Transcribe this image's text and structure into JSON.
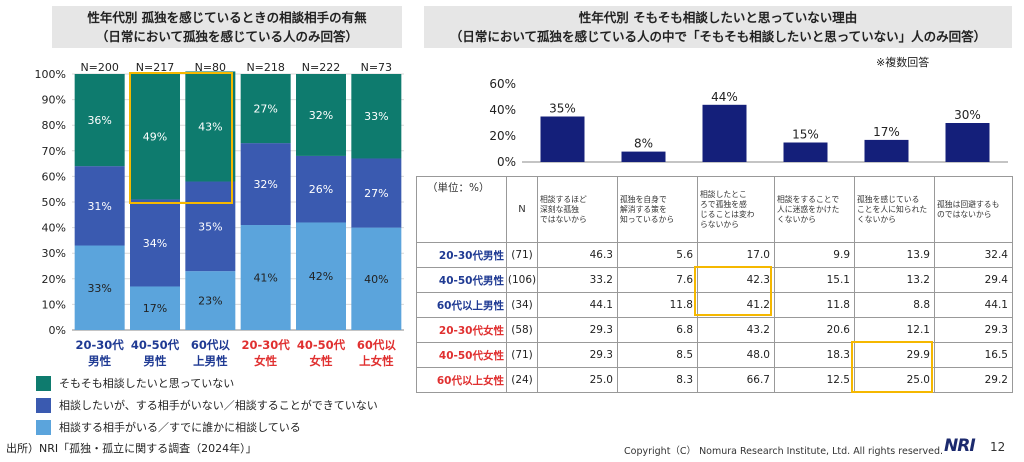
{
  "left": {
    "title_line1": "性年代別 孤独を感じているときの相談相手の有無",
    "title_line2": "（日常において孤独を感じている人のみ回答）"
  },
  "right": {
    "title_line1": "性年代別 そもそも相談したいと思っていない理由",
    "title_line2": "（日常において孤独を感じている人の中で「そもそも相談したいと思っていない」人のみ回答）",
    "note": "※複数回答"
  },
  "source": "出所）NRI「孤独・孤立に関する調査（2024年）」",
  "copyright": "Copyright（C） Nomura Research Institute, Ltd. All rights reserved.",
  "logo": "NRI",
  "page_number": "12",
  "colors": {
    "teal": "#0e7b6e",
    "mid_blue": "#3a5ab0",
    "light_blue": "#5ba4dc",
    "navy": "#141f7a",
    "male": "#1f3a93",
    "female": "#e03030",
    "highlight": "#f5b800"
  },
  "chart_data": [
    {
      "type": "bar",
      "stacked": true,
      "categories": [
        {
          "line1": "20-30代",
          "line2": "男性",
          "group": "male"
        },
        {
          "line1": "40-50代",
          "line2": "男性",
          "group": "male"
        },
        {
          "line1": "60代以",
          "line2": "上男性",
          "group": "male"
        },
        {
          "line1": "20-30代",
          "line2": "女性",
          "group": "female"
        },
        {
          "line1": "40-50代",
          "line2": "女性",
          "group": "female"
        },
        {
          "line1": "60代以",
          "line2": "上女性",
          "group": "female"
        }
      ],
      "n_labels": [
        "N=200",
        "N=217",
        "N=80",
        "N=218",
        "N=222",
        "N=73"
      ],
      "yticks": [
        "0%",
        "10%",
        "20%",
        "30%",
        "40%",
        "50%",
        "60%",
        "70%",
        "80%",
        "90%",
        "100%"
      ],
      "ylim": [
        0,
        100
      ],
      "series": [
        {
          "name": "相談する相手がいる／すでに誰かに相談している",
          "color": "#5ba4dc",
          "values": [
            33,
            17,
            23,
            41,
            42,
            40
          ]
        },
        {
          "name": "相談したいが、する相手がいない／相談することができていない",
          "color": "#3a5ab0",
          "values": [
            31,
            34,
            35,
            32,
            26,
            27
          ]
        },
        {
          "name": "そもそも相談したいと思っていない",
          "color": "#0e7b6e",
          "values": [
            36,
            49,
            43,
            27,
            32,
            33
          ]
        }
      ],
      "legend_order": [
        2,
        1,
        0
      ]
    },
    {
      "type": "bar",
      "categories": [
        "相談するほど深刻な孤独ではないから",
        "孤独を自身で解消する策を知っているから",
        "相談したところで孤独を感じることは変わらないから",
        "相談をすることで人に迷惑をかけたくないから",
        "孤独を感じていることを人に知られたくないから",
        "孤独は回避するものではないから"
      ],
      "values": [
        35,
        8,
        44,
        15,
        17,
        30
      ],
      "value_labels": [
        "35%",
        "8%",
        "44%",
        "15%",
        "17%",
        "30%"
      ],
      "yticks": [
        "0%",
        "20%",
        "40%",
        "60%"
      ],
      "ylim": [
        0,
        60
      ],
      "color": "#141f7a"
    },
    {
      "type": "table",
      "unit_label": "（単位：%）",
      "n_header": "N",
      "columns": [
        [
          "相談するほど",
          "深刻な孤独",
          "ではないから"
        ],
        [
          "孤独を自身で",
          "解消する策を",
          "知っているから"
        ],
        [
          "相談したとこ",
          "ろで孤独を感",
          "じることは変わ",
          "らないから"
        ],
        [
          "相談をすることで",
          "人に迷惑をかけた",
          "くないから"
        ],
        [
          "孤独を感じている",
          "ことを人に知られた",
          "くないから"
        ],
        [
          "孤独は回避するも",
          "のではないから"
        ]
      ],
      "rows": [
        {
          "label": "20-30代男性",
          "group": "male",
          "n": "(71)",
          "values": [
            "46.3",
            "5.6",
            "17.0",
            "9.9",
            "13.9",
            "32.4"
          ]
        },
        {
          "label": "40-50代男性",
          "group": "male",
          "n": "(106)",
          "values": [
            "33.2",
            "7.6",
            "42.3",
            "15.1",
            "13.2",
            "29.4"
          ]
        },
        {
          "label": "60代以上男性",
          "group": "male",
          "n": "(34)",
          "values": [
            "44.1",
            "11.8",
            "41.2",
            "11.8",
            "8.8",
            "44.1"
          ]
        },
        {
          "label": "20-30代女性",
          "group": "female",
          "n": "(58)",
          "values": [
            "29.3",
            "6.8",
            "43.2",
            "20.6",
            "12.1",
            "29.3"
          ]
        },
        {
          "label": "40-50代女性",
          "group": "female",
          "n": "(71)",
          "values": [
            "29.3",
            "8.5",
            "48.0",
            "18.3",
            "29.9",
            "16.5"
          ]
        },
        {
          "label": "60代以上女性",
          "group": "female",
          "n": "(24)",
          "values": [
            "25.0",
            "8.3",
            "66.7",
            "12.5",
            "25.0",
            "29.2"
          ]
        }
      ]
    }
  ]
}
